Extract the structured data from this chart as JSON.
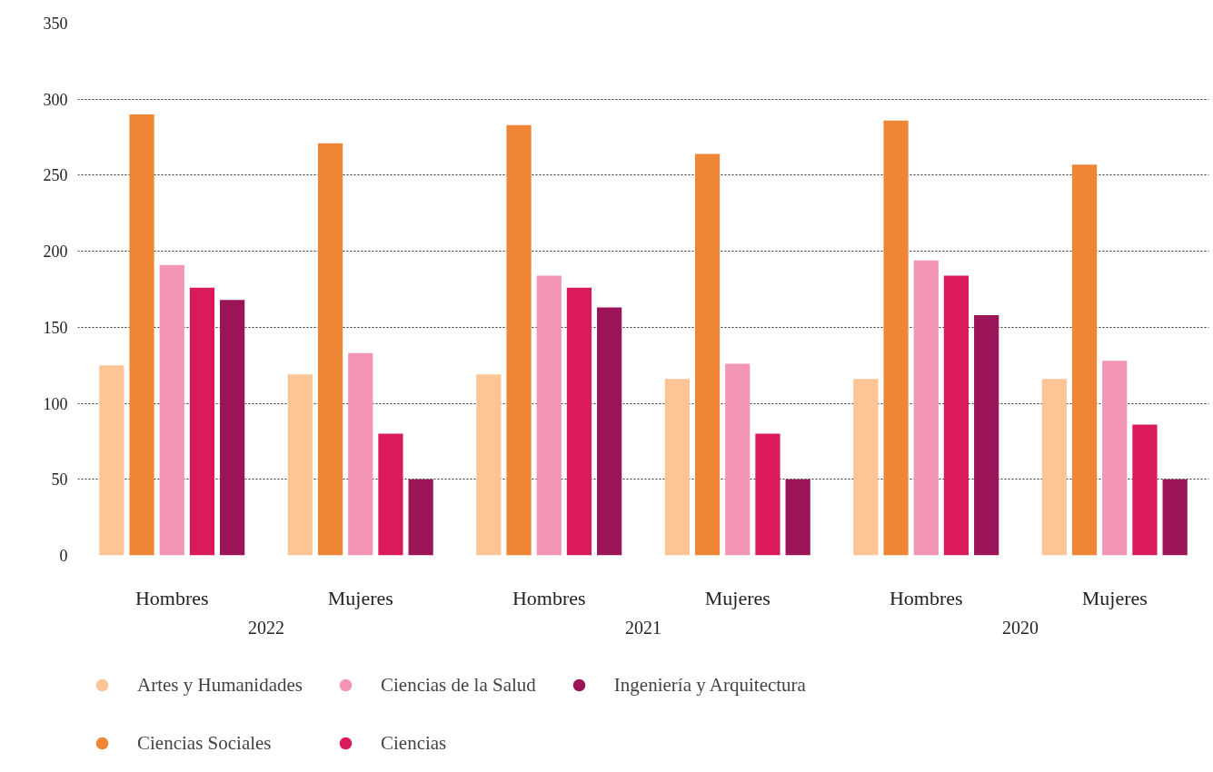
{
  "chart_data": {
    "type": "bar",
    "categories": [
      "Hombres",
      "Mujeres",
      "Hombres",
      "Mujeres",
      "Hombres",
      "Mujeres"
    ],
    "annotations": [
      "2022",
      "2021",
      "2020"
    ],
    "series": [
      {
        "name": "Artes y Humanidades",
        "color": "#fdc596",
        "values": [
          125,
          119,
          119,
          116,
          116,
          116
        ]
      },
      {
        "name": "Ciencias Sociales",
        "color": "#ee8636",
        "values": [
          290,
          271,
          283,
          264,
          286,
          257
        ]
      },
      {
        "name": "Ciencias de la Salud",
        "color": "#f396b6",
        "values": [
          191,
          133,
          184,
          126,
          194,
          128
        ]
      },
      {
        "name": "Ciencias",
        "color": "#db1a5b",
        "values": [
          176,
          80,
          176,
          80,
          184,
          86
        ]
      },
      {
        "name": "Ingeniería y Arquitectura",
        "color": "#9b1457",
        "values": [
          168,
          50,
          163,
          50,
          158,
          50
        ]
      }
    ],
    "ylim": [
      0,
      350
    ],
    "yticks": [
      0,
      50,
      100,
      150,
      200,
      250,
      300,
      350
    ],
    "grid": "y",
    "legend": "bottom"
  }
}
